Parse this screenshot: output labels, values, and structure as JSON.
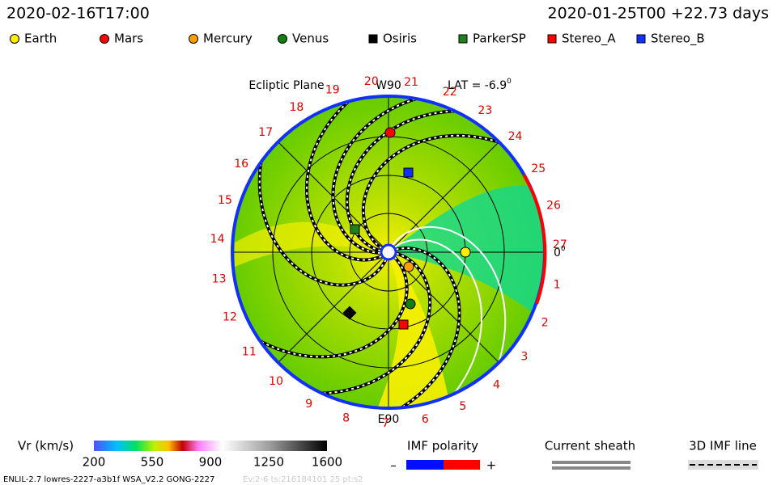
{
  "header": {
    "time": "2020-02-16T17:00",
    "run": "2020-01-25T00 +22.73 days"
  },
  "legend": [
    "Earth",
    "Mars",
    "Mercury",
    "Venus",
    "Osiris",
    "ParkerSP",
    "Stereo_A",
    "Stereo_B"
  ],
  "plot": {
    "plane": "Ecliptic Plane",
    "top": "W90",
    "lat": "LAT = -6.9",
    "lat_unit": "0",
    "bottom": "E90",
    "right": "0",
    "right_unit": "0",
    "longitudes": [
      "1",
      "2",
      "3",
      "4",
      "5",
      "6",
      "7",
      "8",
      "9",
      "10",
      "11",
      "12",
      "13",
      "14",
      "15",
      "16",
      "17",
      "18",
      "19",
      "20",
      "21",
      "22",
      "23",
      "24",
      "25",
      "26",
      "27"
    ]
  },
  "colorbar": {
    "label": "Vr (km/s)",
    "ticks": [
      "200",
      "550",
      "900",
      "1250",
      "1600"
    ]
  },
  "imf": {
    "title": "IMF polarity",
    "minus": "–",
    "plus": "+"
  },
  "sheath": "Current sheath",
  "line3d": "3D IMF line",
  "footer": {
    "left": "ENLIL-2.7 lowres-2227-a3b1f WSA_V2.2 GONG-2227",
    "right": "Ev:2-6 ts:216184101 25 pt:s2"
  }
}
